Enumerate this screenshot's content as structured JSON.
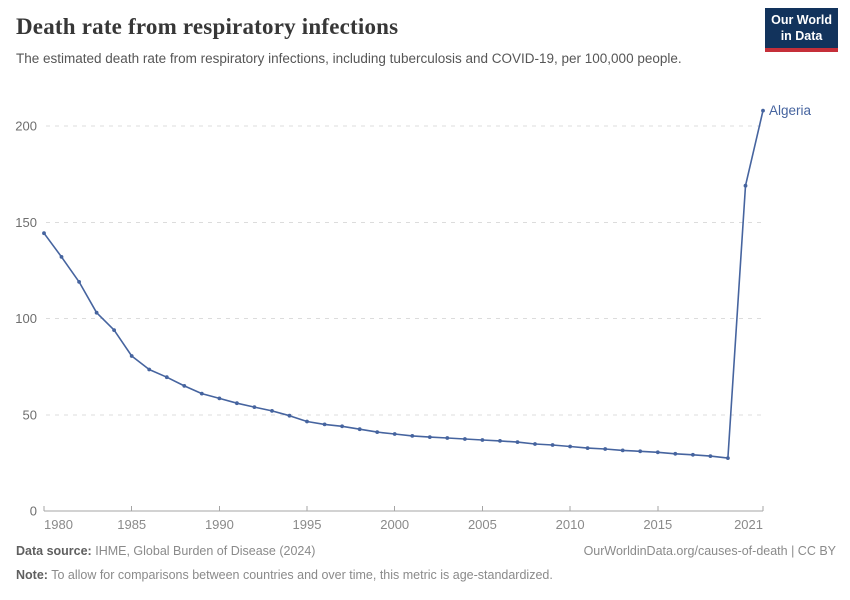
{
  "header": {
    "title": "Death rate from respiratory infections",
    "subtitle": "The estimated death rate from respiratory infections, including tuberculosis and COVID-19, per 100,000 people.",
    "logo": {
      "line1": "Our World",
      "line2": "in Data"
    }
  },
  "chart_data": {
    "type": "line",
    "title": "Death rate from respiratory infections",
    "xlabel": "",
    "ylabel": "",
    "xlim": [
      1980,
      2021
    ],
    "ylim": [
      0,
      210
    ],
    "grid": true,
    "legend_position": "end-of-line-label",
    "xticks": [
      1980,
      1985,
      1990,
      1995,
      2000,
      2005,
      2010,
      2015,
      2021
    ],
    "yticks": [
      0,
      50,
      100,
      150,
      200
    ],
    "x": [
      1980,
      1981,
      1982,
      1983,
      1984,
      1985,
      1986,
      1987,
      1988,
      1989,
      1990,
      1991,
      1992,
      1993,
      1994,
      1995,
      1996,
      1997,
      1998,
      1999,
      2000,
      2001,
      2002,
      2003,
      2004,
      2005,
      2006,
      2007,
      2008,
      2009,
      2010,
      2011,
      2012,
      2013,
      2014,
      2015,
      2016,
      2017,
      2018,
      2019,
      2020,
      2021
    ],
    "series": [
      {
        "name": "Algeria",
        "color": "#46649f",
        "values": [
          144.3,
          132,
          119,
          103,
          94,
          80.5,
          73.5,
          69.5,
          65,
          61,
          58.5,
          56,
          54,
          52,
          49.5,
          46.5,
          45,
          44,
          42.5,
          41,
          40,
          39,
          38.4,
          37.9,
          37.4,
          36.9,
          36.4,
          35.8,
          34.8,
          34.3,
          33.5,
          32.7,
          32.2,
          31.5,
          31,
          30.5,
          29.7,
          29.2,
          28.5,
          27.5,
          169,
          208
        ]
      }
    ]
  },
  "colors": {
    "line": "#46649f",
    "gridline": "#dcdcdc",
    "axis": "#a5a5a5",
    "ytick_label": "#6e6e6e",
    "xtick_label": "#8a8a8a",
    "logo_bg": "#12335c",
    "logo_stripe": "#c52f39"
  },
  "footer": {
    "source_label": "Data source:",
    "source_text": "IHME, Global Burden of Disease (2024)",
    "credit": "OurWorldinData.org/causes-of-death | CC BY",
    "note_label": "Note:",
    "note_text": "To allow for comparisons between countries and over time, this metric is age-standardized."
  }
}
